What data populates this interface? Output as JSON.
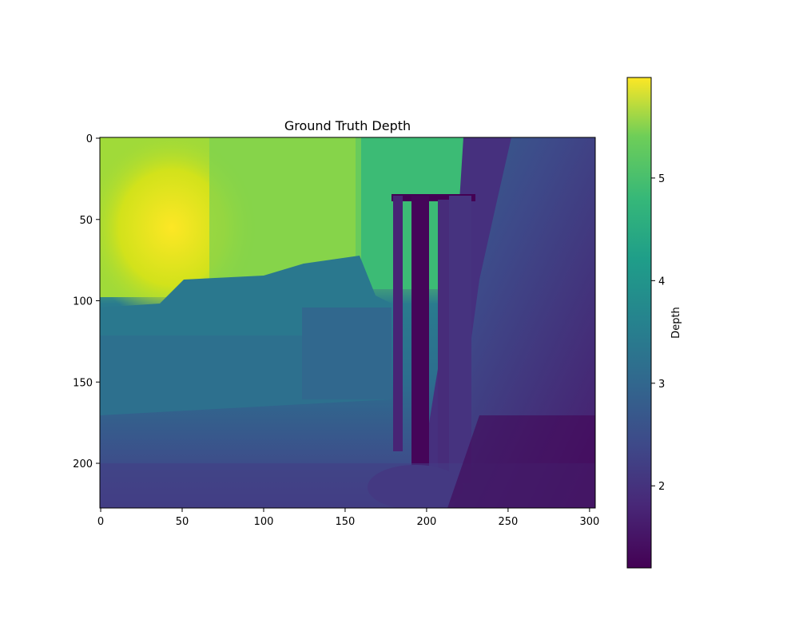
{
  "chart_data": {
    "type": "heatmap",
    "title": "Ground Truth Depth",
    "colormap": "viridis",
    "image_width": 304,
    "image_height": 228,
    "x_ticks": [
      0,
      50,
      100,
      150,
      200,
      250,
      300
    ],
    "y_ticks": [
      0,
      50,
      100,
      150,
      200
    ],
    "colorbar": {
      "label": "Depth",
      "min": 1.2,
      "max": 5.98,
      "ticks": [
        2,
        3,
        4,
        5
      ]
    }
  }
}
